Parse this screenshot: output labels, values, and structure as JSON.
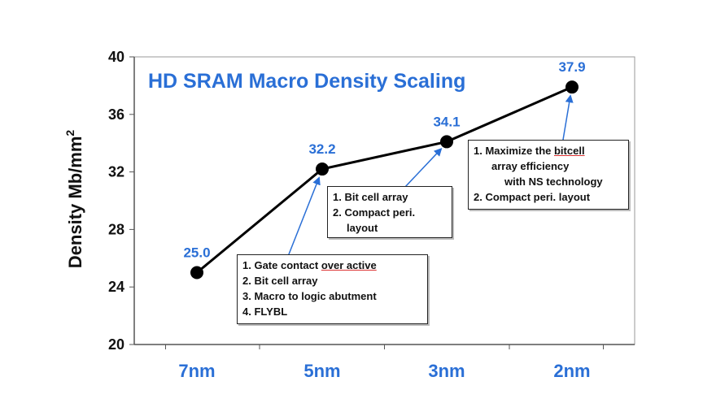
{
  "chart_data": {
    "type": "line",
    "title": "HD SRAM Macro Density Scaling",
    "ylabel_main": "Density Mb/mm",
    "ylabel_sup": "2",
    "xlabel": "",
    "categories": [
      "7nm",
      "5nm",
      "3nm",
      "2nm"
    ],
    "values": [
      25.0,
      32.2,
      34.1,
      37.9
    ],
    "data_labels": [
      "25.0",
      "32.2",
      "34.1",
      "37.9"
    ],
    "ylim": [
      20,
      40
    ],
    "yticks": [
      20,
      24,
      28,
      32,
      36,
      40
    ],
    "grid": false,
    "colors": {
      "line": "#000000",
      "marker": "#000000",
      "accent": "#2a6fd6"
    }
  },
  "annotations": {
    "box_5nm": {
      "l1": "1. Gate contact ",
      "l1u": "over active",
      "l2": "2. Bit cell array",
      "l3": "3. Macro to logic abutment",
      "l4": "4. FLYBL"
    },
    "box_3nm": {
      "l1": "1. Bit cell array",
      "l2": "2. Compact peri.",
      "l3": "layout"
    },
    "box_2nm": {
      "l1a": "1. Maximize the ",
      "l1u": "bitcell",
      "l2": "array efficiency",
      "l3": "with NS technology",
      "l4": "2. Compact peri. layout"
    }
  }
}
